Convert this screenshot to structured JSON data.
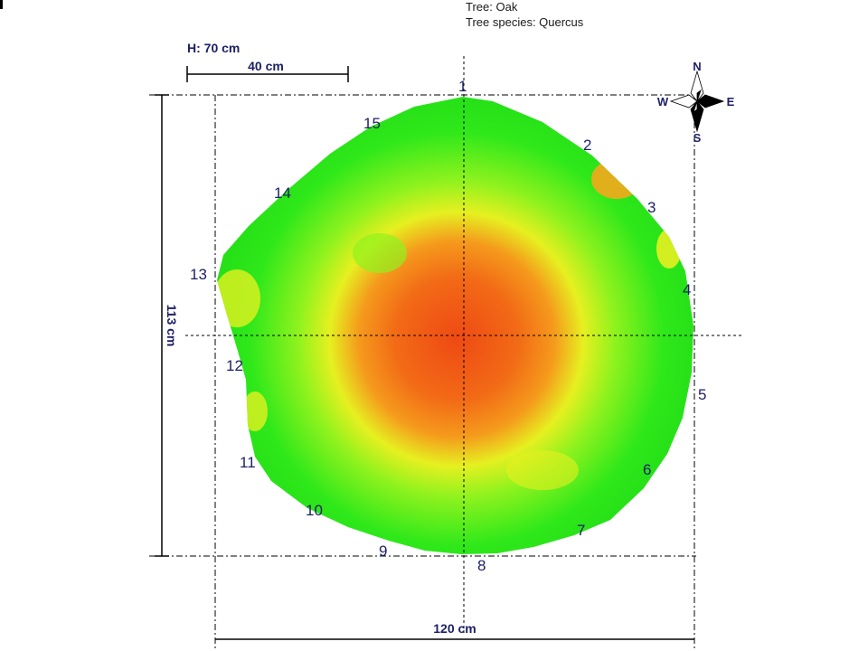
{
  "header": {
    "tree": "Tree: Oak",
    "species": "Tree species: Quercus"
  },
  "dimensions": {
    "height": "H: 70 cm",
    "scale_bar": "40 cm",
    "vertical": "113 cm",
    "horizontal": "120 cm"
  },
  "compass": {
    "n": "N",
    "s": "S",
    "e": "E",
    "w": "W"
  },
  "sensors": [
    "1",
    "2",
    "3",
    "4",
    "5",
    "6",
    "7",
    "8",
    "9",
    "10",
    "11",
    "12",
    "13",
    "14",
    "15"
  ],
  "colors": {
    "outer": "#2ee81a",
    "mid": "#8ef21e",
    "yellow": "#e6f020",
    "orange": "#f59a1c",
    "core": "#ee4a14",
    "label": "#1c1f66",
    "lines": "#000000"
  }
}
